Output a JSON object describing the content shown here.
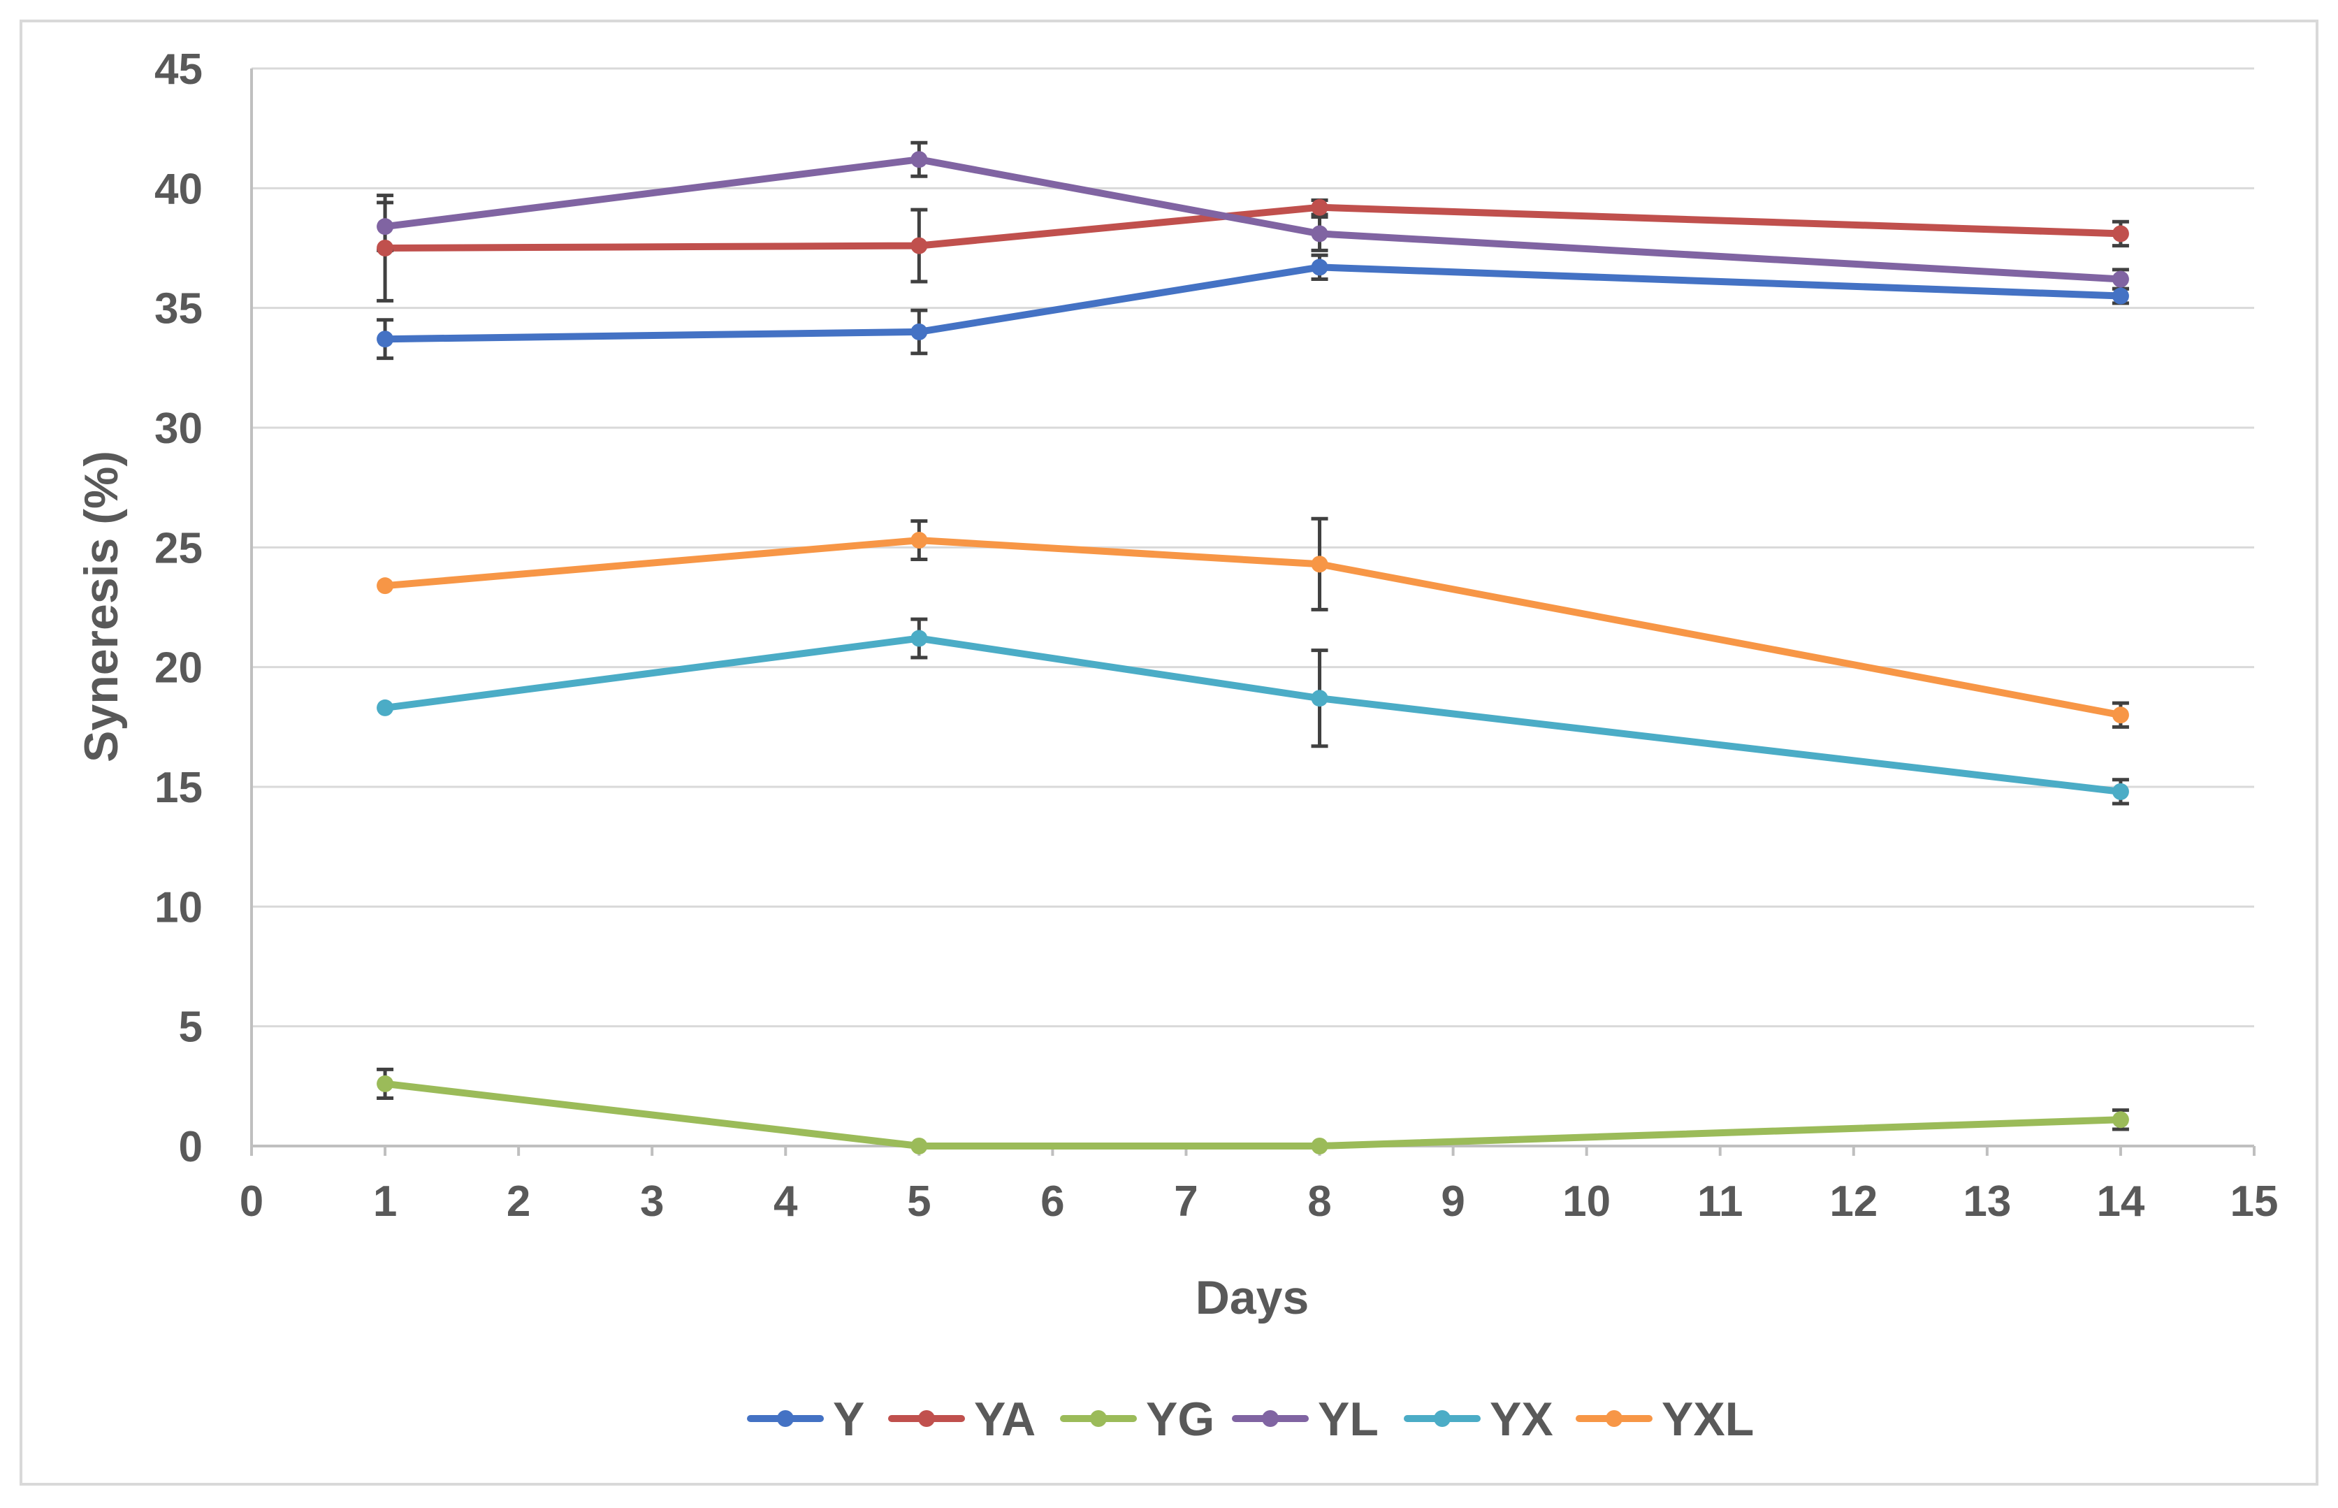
{
  "chart_data": {
    "type": "line",
    "title": "",
    "xlabel": "Days",
    "ylabel": "Syneresis (%)",
    "xlim": [
      0,
      15
    ],
    "ylim": [
      0,
      45
    ],
    "x_ticks": [
      "0",
      "1",
      "2",
      "3",
      "4",
      "5",
      "6",
      "7",
      "8",
      "9",
      "10",
      "11",
      "12",
      "13",
      "14",
      "15"
    ],
    "y_ticks": [
      "0",
      "5",
      "10",
      "15",
      "20",
      "25",
      "30",
      "35",
      "40",
      "45"
    ],
    "grid": true,
    "legend_position": "bottom",
    "x": [
      1,
      5,
      8,
      14
    ],
    "series": [
      {
        "name": "Y",
        "color": "#4472C4",
        "values": [
          33.7,
          34.0,
          36.7,
          35.5
        ],
        "errors": [
          0.8,
          0.9,
          0.5,
          0.3
        ]
      },
      {
        "name": "YA",
        "color": "#C0504D",
        "values": [
          37.5,
          37.6,
          39.2,
          38.1
        ],
        "errors": [
          2.2,
          1.5,
          0.3,
          0.5
        ]
      },
      {
        "name": "YG",
        "color": "#9BBB59",
        "values": [
          2.6,
          0.0,
          0.0,
          1.1
        ],
        "errors": [
          0.6,
          0.0,
          0.0,
          0.4
        ]
      },
      {
        "name": "YL",
        "color": "#8064A2",
        "values": [
          38.4,
          41.2,
          38.1,
          36.2
        ],
        "errors": [
          1.0,
          0.7,
          0.7,
          0.4
        ]
      },
      {
        "name": "YX",
        "color": "#4BACC6",
        "values": [
          18.3,
          21.2,
          18.7,
          14.8
        ],
        "errors": [
          0.0,
          0.8,
          2.0,
          0.5
        ]
      },
      {
        "name": "YXL",
        "color": "#F79646",
        "values": [
          23.4,
          25.3,
          24.3,
          18.0
        ],
        "errors": [
          0.0,
          0.8,
          1.9,
          0.5
        ]
      }
    ]
  }
}
